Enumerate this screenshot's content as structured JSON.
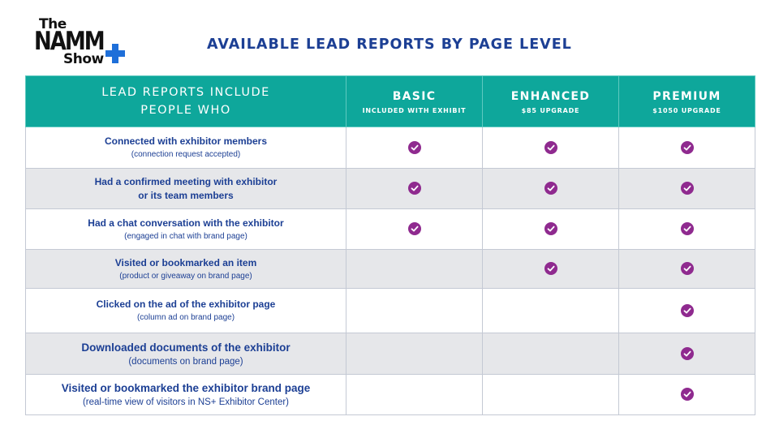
{
  "logo": {
    "line1": "The",
    "line2": "NAMM",
    "line3": "Show",
    "plus_color": "#1e6fd9"
  },
  "title": "AVAILABLE LEAD REPORTS BY PAGE LEVEL",
  "header": {
    "main_line1": "LEAD REPORTS INCLUDE",
    "main_line2": "PEOPLE WHO",
    "tiers": [
      {
        "name": "BASIC",
        "sub": "INCLUDED WITH EXHIBIT"
      },
      {
        "name": "ENHANCED",
        "sub": "$85 UPGRADE"
      },
      {
        "name": "PREMIUM",
        "sub": "$1050 UPGRADE"
      }
    ]
  },
  "rows": [
    {
      "main": "Connected with exhibitor members",
      "sub": "(connection request accepted)",
      "checks": [
        true,
        true,
        true
      ]
    },
    {
      "main": "Had a confirmed meeting with exhibitor",
      "main2": "or its team members",
      "checks": [
        true,
        true,
        true
      ]
    },
    {
      "main": "Had a chat conversation with the exhibitor",
      "sub": "(engaged in chat with brand page)",
      "checks": [
        true,
        true,
        true
      ]
    },
    {
      "main": "Visited or bookmarked an item",
      "sub": "(product or giveaway on brand page)",
      "checks": [
        false,
        true,
        true
      ]
    },
    {
      "main": "Clicked on the ad of the exhibitor page",
      "sub": "(column ad on brand page)",
      "checks": [
        false,
        false,
        true
      ]
    },
    {
      "main": "Downloaded documents of the exhibitor",
      "sub": "(documents on brand page)",
      "checks": [
        false,
        false,
        true
      ]
    },
    {
      "main": "Visited or bookmarked the exhibitor brand page",
      "sub": "(real-time view of visitors in NS+ Exhibitor Center)",
      "checks": [
        false,
        false,
        true
      ]
    }
  ],
  "colors": {
    "header_bg": "#0ea79b",
    "title": "#1c3f94",
    "check": "#8f2a8f",
    "alt_row": "#e6e7ea"
  },
  "icons": {
    "check": "check-circle-icon",
    "plus": "plus-icon"
  }
}
